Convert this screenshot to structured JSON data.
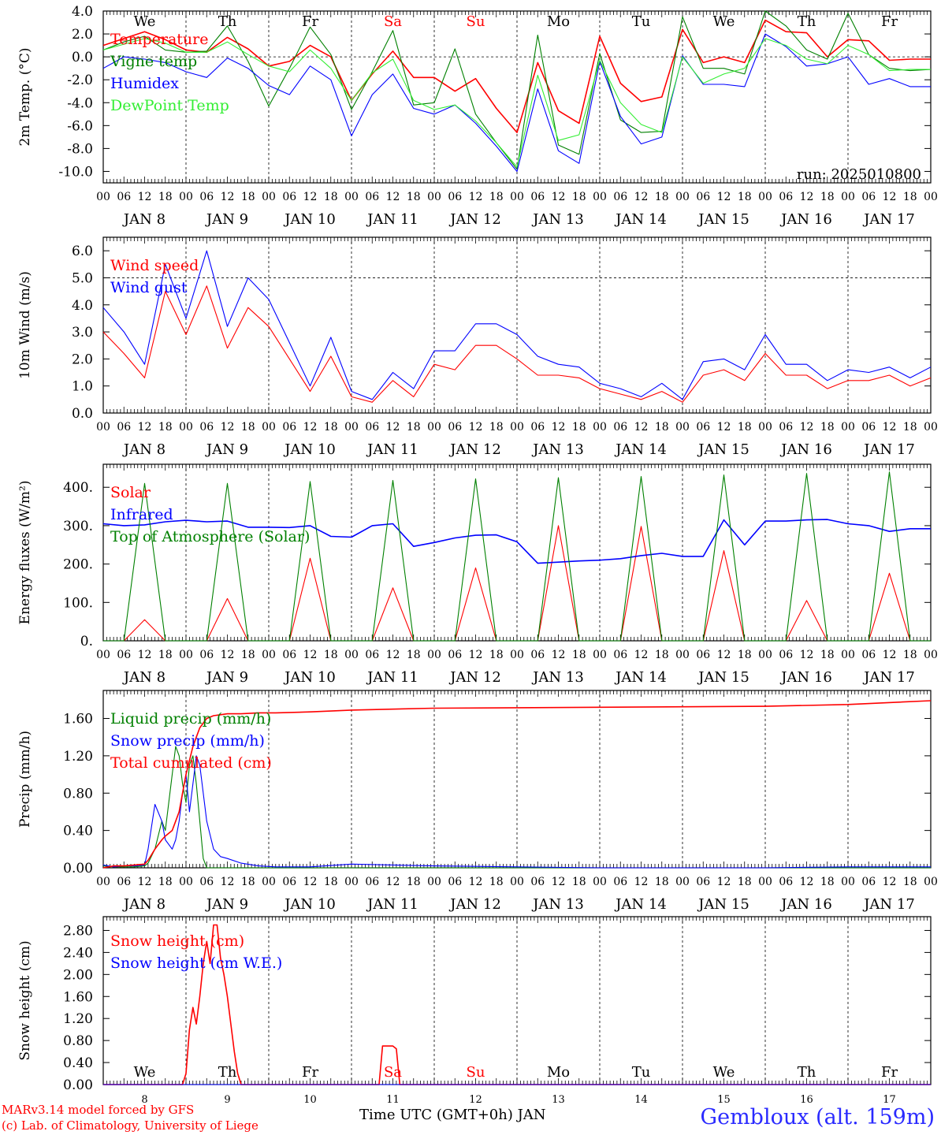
{
  "title": "",
  "station": "Gembloux (alt. 159m)",
  "run_label": "run: 2025010800",
  "credits": [
    "MARv3.14 model forced by GFS",
    "(c) Lab. of Climatology, University of Liege"
  ],
  "x_axis_title": "Time UTC (GMT+0h) JAN",
  "hour_ticks": [
    "00",
    "06",
    "12",
    "18"
  ],
  "end_tick": "00",
  "days": [
    "JAN  8",
    "JAN  9",
    "JAN 10",
    "JAN 11",
    "JAN 12",
    "JAN 13",
    "JAN 14",
    "JAN 15",
    "JAN 16",
    "JAN 17"
  ],
  "day_numbers": [
    "8",
    "9",
    "10",
    "11",
    "12",
    "13",
    "14",
    "15",
    "16",
    "17"
  ],
  "weekdays": [
    "We",
    "Th",
    "Fr",
    "Sa",
    "Su",
    "Mo",
    "Tu",
    "We",
    "Th",
    "Fr"
  ],
  "weekend_color": "#ff0000",
  "colors": {
    "red": "#ff0000",
    "green": "#008000",
    "blue": "#0000ff",
    "lightgreen": "#33ee33"
  },
  "chart_data": [
    {
      "type": "line",
      "ylabel": "2m Temp. (°C)",
      "ylim": [
        -11,
        4
      ],
      "yticks": [
        "4.0",
        "2.0",
        "0.0",
        "-2.0",
        "-4.0",
        "-6.0",
        "-8.0",
        "-10.0"
      ],
      "ytick_values": [
        4,
        2,
        0,
        -2,
        -4,
        -6,
        -8,
        -10
      ],
      "ref_line": 0,
      "legend": "top-left",
      "x_hours": [
        0,
        6,
        12,
        18,
        24,
        30,
        36,
        42,
        48,
        54,
        60,
        66,
        72,
        78,
        84,
        90,
        96,
        102,
        108,
        114,
        120,
        126,
        132,
        138,
        144,
        150,
        156,
        162,
        168,
        174,
        180,
        186,
        192,
        198,
        204,
        210,
        216,
        222,
        228,
        234,
        240
      ],
      "series": [
        {
          "name": "Temperature",
          "color": "#ff0000",
          "values": [
            1.0,
            1.6,
            2.2,
            1.5,
            0.6,
            0.4,
            1.7,
            0.7,
            -0.8,
            -0.4,
            1.0,
            0.0,
            -3.8,
            -1.5,
            0.5,
            -1.8,
            -1.8,
            -3.0,
            -1.9,
            -4.5,
            -6.6,
            -0.5,
            -4.7,
            -5.8,
            1.8,
            -2.3,
            -3.9,
            -3.5,
            2.4,
            -0.5,
            0.0,
            -0.5,
            3.2,
            2.2,
            2.1,
            0.0,
            1.5,
            1.4,
            -0.3,
            -0.2,
            -0.2
          ]
        },
        {
          "name": "Vigne temp",
          "color": "#008000",
          "values": [
            0.6,
            1.3,
            1.8,
            0.6,
            0.4,
            0.5,
            2.7,
            -0.4,
            -4.3,
            -1.0,
            2.6,
            0.2,
            -4.6,
            -1.3,
            2.3,
            -4.2,
            -4.0,
            0.7,
            -5.0,
            -7.5,
            -9.8,
            1.9,
            -7.7,
            -8.5,
            0.3,
            -5.5,
            -6.6,
            -6.5,
            3.5,
            -1.0,
            -1.0,
            -1.5,
            4.0,
            2.7,
            0.6,
            -0.2,
            3.8,
            0.2,
            -1.0,
            -1.2,
            -1.1
          ]
        },
        {
          "name": "Humidex",
          "color": "#0000ff",
          "values": [
            -1.0,
            0.0,
            -0.2,
            -0.5,
            -1.3,
            -1.8,
            -0.1,
            -1.0,
            -2.5,
            -3.3,
            -0.8,
            -2.0,
            -6.9,
            -3.3,
            -1.5,
            -4.5,
            -5.0,
            -4.2,
            -5.8,
            -7.8,
            -10.0,
            -2.8,
            -8.2,
            -9.3,
            -0.4,
            -5.2,
            -7.6,
            -7.0,
            0.1,
            -2.4,
            -2.4,
            -2.6,
            2.0,
            0.9,
            -0.8,
            -0.6,
            0.0,
            -2.4,
            -1.9,
            -2.6,
            -2.6
          ]
        },
        {
          "name": "DewPoint Temp",
          "color": "#33ee33",
          "values": [
            0.6,
            1.1,
            1.6,
            1.2,
            0.4,
            0.4,
            1.3,
            0.2,
            -0.8,
            -1.3,
            0.6,
            -1.0,
            -3.8,
            -1.4,
            -0.2,
            -3.8,
            -4.6,
            -4.2,
            -5.6,
            -7.5,
            -9.6,
            -1.6,
            -7.3,
            -6.8,
            -0.3,
            -4.0,
            -5.9,
            -6.6,
            0.0,
            -2.3,
            -1.5,
            -1.0,
            1.6,
            1.0,
            -0.2,
            -0.6,
            1.0,
            0.2,
            -1.2,
            -1.1,
            -1.1
          ]
        }
      ]
    },
    {
      "type": "line",
      "ylabel": "10m Wind (m/s)",
      "ylim": [
        0,
        6.5
      ],
      "yticks": [
        "6.0",
        "5.0",
        "4.0",
        "3.0",
        "2.0",
        "1.0",
        "0.0"
      ],
      "ytick_values": [
        6,
        5,
        4,
        3,
        2,
        1,
        0
      ],
      "ref_line": 5,
      "legend": "top-left",
      "x_hours": [
        0,
        6,
        12,
        18,
        24,
        30,
        36,
        42,
        48,
        54,
        60,
        66,
        72,
        78,
        84,
        90,
        96,
        102,
        108,
        114,
        120,
        126,
        132,
        138,
        144,
        150,
        156,
        162,
        168,
        174,
        180,
        186,
        192,
        198,
        204,
        210,
        216,
        222,
        228,
        234,
        240
      ],
      "series": [
        {
          "name": "Wind speed",
          "color": "#ff0000",
          "values": [
            3.0,
            2.2,
            1.3,
            4.5,
            2.9,
            4.7,
            2.4,
            3.9,
            3.2,
            2.0,
            0.8,
            2.1,
            0.6,
            0.4,
            1.2,
            0.6,
            1.8,
            1.6,
            2.5,
            2.5,
            2.0,
            1.4,
            1.4,
            1.3,
            0.9,
            0.7,
            0.5,
            0.8,
            0.4,
            1.4,
            1.6,
            1.2,
            2.2,
            1.4,
            1.4,
            0.9,
            1.2,
            1.2,
            1.4,
            1.0,
            1.3
          ]
        },
        {
          "name": "Wind gust",
          "color": "#0000ff",
          "values": [
            3.9,
            3.0,
            1.8,
            5.5,
            3.5,
            6.0,
            3.2,
            5.0,
            4.2,
            2.6,
            1.0,
            2.8,
            0.8,
            0.5,
            1.5,
            0.9,
            2.3,
            2.3,
            3.3,
            3.3,
            2.9,
            2.1,
            1.8,
            1.7,
            1.1,
            0.9,
            0.6,
            1.1,
            0.5,
            1.9,
            2.0,
            1.6,
            2.9,
            1.8,
            1.8,
            1.2,
            1.6,
            1.5,
            1.7,
            1.3,
            1.7
          ]
        }
      ]
    },
    {
      "type": "line",
      "ylabel": "Energy fluxes (W/m²)",
      "ylim": [
        0,
        460
      ],
      "yticks": [
        "400.",
        "300.",
        "200.",
        "100.",
        "0."
      ],
      "ytick_values": [
        400,
        300,
        200,
        100,
        0
      ],
      "legend": "top-left",
      "x_hours": [
        0,
        6,
        12,
        18,
        24,
        30,
        36,
        42,
        48,
        54,
        60,
        66,
        72,
        78,
        84,
        90,
        96,
        102,
        108,
        114,
        120,
        126,
        132,
        138,
        144,
        150,
        156,
        162,
        168,
        174,
        180,
        186,
        192,
        198,
        204,
        210,
        216,
        222,
        228,
        234,
        240
      ],
      "series": [
        {
          "name": "Solar",
          "color": "#ff0000",
          "values": [
            0,
            0,
            55,
            0,
            0,
            0,
            110,
            0,
            0,
            0,
            215,
            0,
            0,
            0,
            138,
            0,
            0,
            0,
            190,
            0,
            0,
            0,
            300,
            0,
            0,
            0,
            298,
            0,
            0,
            0,
            235,
            0,
            0,
            0,
            105,
            0,
            0,
            0,
            176,
            0,
            0
          ]
        },
        {
          "name": "Infrared",
          "color": "#0000ff",
          "values": [
            305,
            300,
            302,
            310,
            314,
            310,
            312,
            296,
            296,
            295,
            300,
            272,
            270,
            300,
            305,
            246,
            256,
            268,
            275,
            276,
            258,
            202,
            205,
            208,
            210,
            214,
            222,
            228,
            220,
            220,
            315,
            250,
            312,
            312,
            315,
            316,
            305,
            300,
            285,
            292,
            292
          ]
        },
        {
          "name": "Top of Atmosphere (Solar)",
          "color": "#008000",
          "values": [
            0,
            0,
            410,
            0,
            0,
            0,
            410,
            0,
            0,
            0,
            415,
            0,
            0,
            0,
            418,
            0,
            0,
            0,
            422,
            0,
            0,
            0,
            425,
            0,
            0,
            0,
            428,
            0,
            0,
            0,
            432,
            0,
            0,
            0,
            436,
            0,
            0,
            0,
            440,
            0,
            0
          ]
        }
      ]
    },
    {
      "type": "line",
      "ylabel": "Precip (mm/h)",
      "ylim": [
        0,
        1.9
      ],
      "yticks": [
        "1.60",
        "1.20",
        "0.80",
        "0.40",
        "0.00"
      ],
      "ytick_values": [
        1.6,
        1.2,
        0.8,
        0.4,
        0
      ],
      "legend": "top-left",
      "x_hours": [
        0,
        3,
        6,
        9,
        12,
        13,
        15,
        17,
        18,
        20,
        21,
        22,
        23,
        24,
        25,
        26,
        27,
        28,
        29,
        30,
        32,
        34,
        36,
        40,
        45,
        50,
        60,
        72,
        96,
        144,
        192,
        216,
        240
      ],
      "series": [
        {
          "name": "Liquid precip (mm/h)",
          "color": "#008000",
          "values": [
            0.02,
            0.01,
            0.01,
            0.01,
            0.02,
            0.05,
            0.2,
            0.5,
            0.4,
            1.0,
            1.3,
            1.2,
            0.9,
            0.7,
            1.1,
            1.2,
            0.9,
            0.5,
            0.1,
            0.0,
            0.0,
            0.0,
            0.0,
            0.0,
            0.0,
            0.0,
            0.0,
            0.0,
            0.0,
            0.0,
            0.0,
            0.0,
            0.0
          ]
        },
        {
          "name": "Snow precip (mm/h)",
          "color": "#0000ff",
          "values": [
            0.03,
            0.01,
            0.02,
            0.02,
            0.03,
            0.2,
            0.68,
            0.5,
            0.3,
            0.2,
            0.3,
            0.5,
            0.8,
            1.0,
            0.6,
            0.9,
            1.2,
            1.1,
            0.8,
            0.5,
            0.2,
            0.12,
            0.1,
            0.05,
            0.02,
            0.01,
            0.01,
            0.04,
            0.02,
            0.0,
            0.0,
            0.01,
            0.01
          ]
        },
        {
          "name": "Total cumulated (cm)",
          "color": "#ff0000",
          "values": [
            0.0,
            0.02,
            0.02,
            0.03,
            0.04,
            0.08,
            0.2,
            0.3,
            0.34,
            0.4,
            0.5,
            0.6,
            0.8,
            1.0,
            1.15,
            1.3,
            1.4,
            1.5,
            1.55,
            1.6,
            1.63,
            1.64,
            1.65,
            1.65,
            1.66,
            1.66,
            1.67,
            1.69,
            1.71,
            1.72,
            1.73,
            1.75,
            1.79
          ]
        }
      ]
    },
    {
      "type": "line",
      "ylabel": "Snow height (cm)",
      "ylim": [
        0,
        3.05
      ],
      "yticks": [
        "2.80",
        "2.40",
        "2.00",
        "1.60",
        "1.20",
        "0.80",
        "0.40",
        "0.00"
      ],
      "ytick_values": [
        2.8,
        2.4,
        2.0,
        1.6,
        1.2,
        0.8,
        0.4,
        0
      ],
      "legend": "top-left",
      "x_hours": [
        0,
        23,
        24,
        25,
        26,
        27,
        28,
        29,
        30,
        31,
        32,
        33,
        34,
        35,
        36,
        37,
        38,
        39,
        40,
        56,
        80,
        81,
        82,
        83,
        84,
        85,
        86,
        240
      ],
      "series": [
        {
          "name": "Snow height (cm)",
          "color": "#ff0000",
          "values": [
            0,
            0,
            0.2,
            1.0,
            1.4,
            1.1,
            1.6,
            2.2,
            2.6,
            2.2,
            2.9,
            2.9,
            2.3,
            2.0,
            1.6,
            1.1,
            0.6,
            0.2,
            0,
            0,
            0,
            0.7,
            0.7,
            0.7,
            0.7,
            0.65,
            0,
            0
          ]
        },
        {
          "name": "Snow height (cm W.E.)",
          "color": "#0000ff",
          "values": [
            0,
            0,
            0,
            0,
            0,
            0,
            0,
            0,
            0,
            0,
            0,
            0,
            0,
            0,
            0,
            0,
            0,
            0,
            0,
            0,
            0,
            0,
            0,
            0,
            0,
            0,
            0,
            0
          ]
        }
      ]
    }
  ]
}
